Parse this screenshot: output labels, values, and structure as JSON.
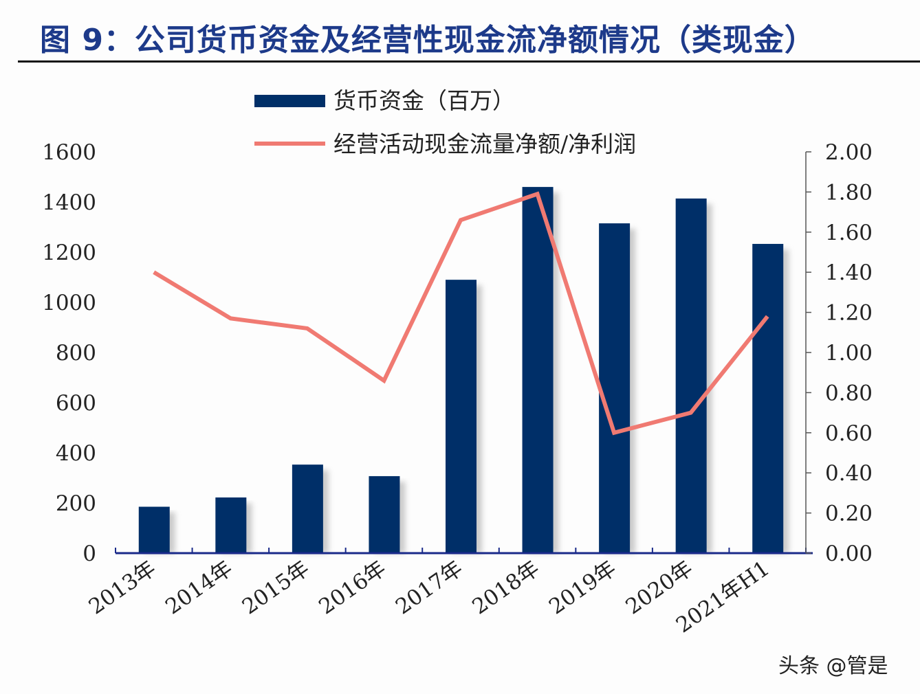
{
  "title": "图 9：公司货币资金及经营性现金流净额情况（类现金）",
  "watermark": "头条 @管是",
  "chart_data": {
    "type": "bar+line",
    "categories": [
      "2013年",
      "2014年",
      "2015年",
      "2016年",
      "2017年",
      "2018年",
      "2019年",
      "2020年",
      "2021年H1"
    ],
    "series": [
      {
        "name": "货币资金（百万）",
        "type": "bar",
        "axis": "left",
        "color": "#002f68",
        "values": [
          185,
          222,
          353,
          307,
          1090,
          1460,
          1315,
          1414,
          1233
        ]
      },
      {
        "name": "经营活动现金流量净额/净利润",
        "type": "line",
        "axis": "right",
        "color": "#f07a72",
        "values": [
          1.4,
          1.17,
          1.12,
          0.86,
          1.66,
          1.79,
          0.6,
          0.7,
          1.18
        ]
      }
    ],
    "y_left": {
      "ylim": [
        0,
        1600
      ],
      "ticks": [
        "0",
        "200",
        "400",
        "600",
        "800",
        "1000",
        "1200",
        "1400",
        "1600"
      ]
    },
    "y_right": {
      "ylim": [
        0,
        2.0
      ],
      "ticks": [
        "0.00",
        "0.20",
        "0.40",
        "0.60",
        "0.80",
        "1.00",
        "1.20",
        "1.40",
        "1.60",
        "1.80",
        "2.00"
      ]
    },
    "legend": "top-center",
    "grid": false
  }
}
